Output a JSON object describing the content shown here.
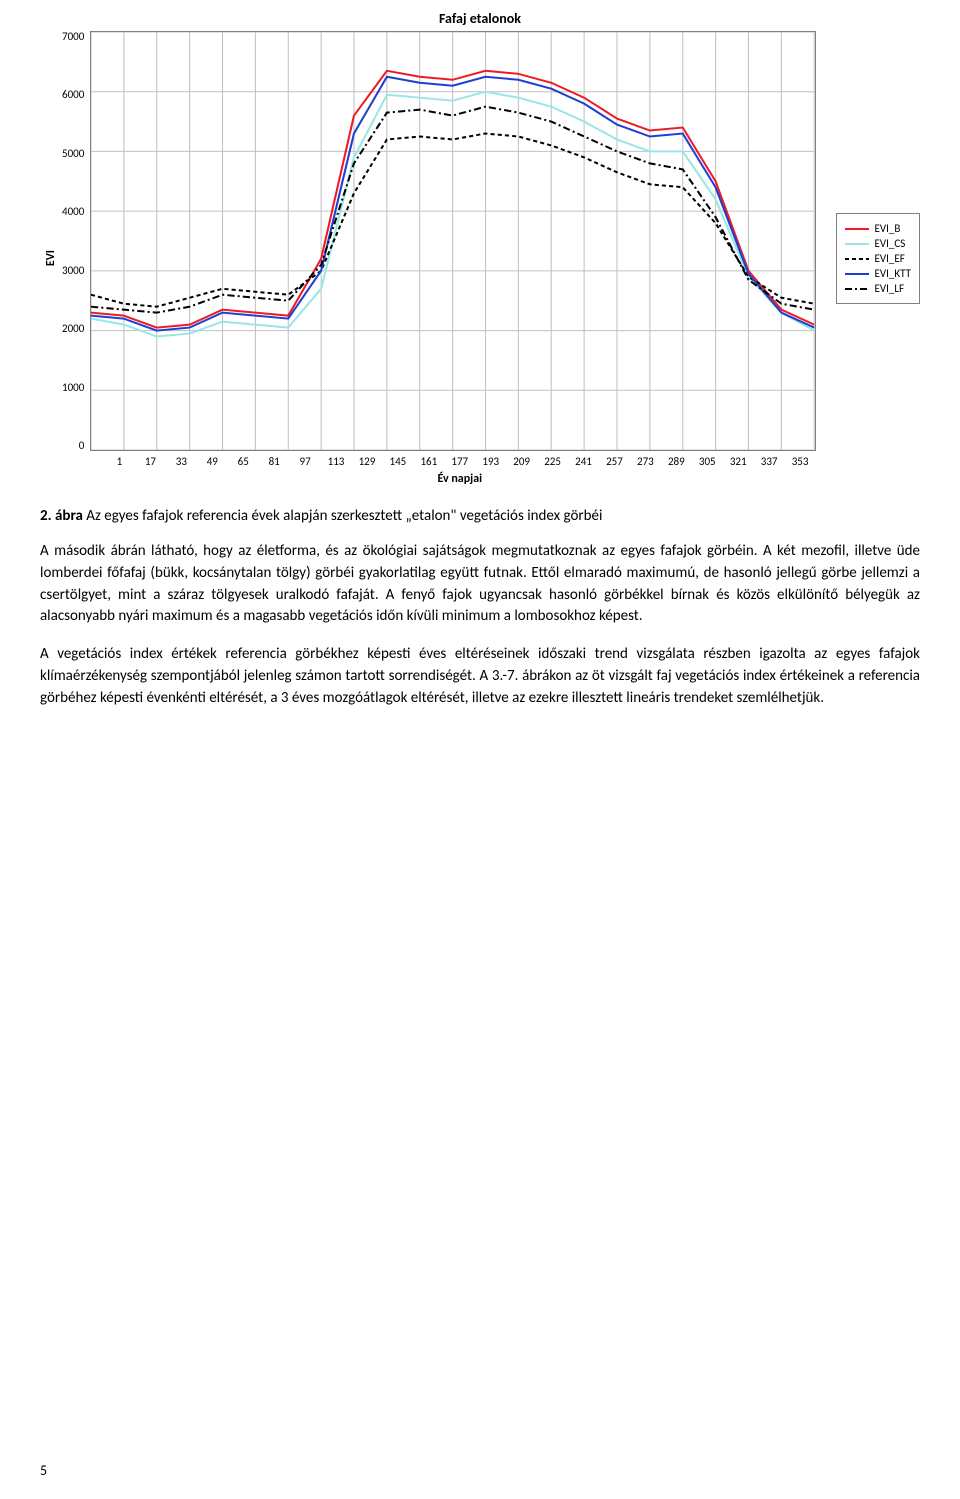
{
  "chart": {
    "type": "line",
    "title": "Fafaj etalonok",
    "y_axis_label": "EVI",
    "x_axis_label": "Év napjai",
    "background_color": "#ffffff",
    "plot_border_color": "#808080",
    "grid_color": "#c0c0c0",
    "ylim": [
      0,
      7000
    ],
    "ytick_step": 1000,
    "y_ticks": [
      "7000",
      "6000",
      "5000",
      "4000",
      "3000",
      "2000",
      "1000",
      "0"
    ],
    "xlim": [
      1,
      353
    ],
    "xtick_step": 16,
    "x_ticks": [
      "1",
      "17",
      "33",
      "49",
      "65",
      "81",
      "97",
      "113",
      "129",
      "145",
      "161",
      "177",
      "193",
      "209",
      "225",
      "241",
      "257",
      "273",
      "289",
      "305",
      "321",
      "337",
      "353"
    ],
    "title_fontsize": 14,
    "axis_label_fontsize": 12,
    "tick_fontsize": 11,
    "line_width": 2,
    "series": [
      {
        "name": "EVI_B",
        "color": "#ed1c24",
        "dash": "solid",
        "x": [
          1,
          17,
          33,
          49,
          65,
          81,
          97,
          113,
          129,
          145,
          161,
          177,
          193,
          209,
          225,
          241,
          257,
          273,
          289,
          305,
          321,
          337,
          353
        ],
        "y": [
          2300,
          2250,
          2050,
          2100,
          2350,
          2300,
          2250,
          3200,
          5600,
          6350,
          6250,
          6200,
          6350,
          6300,
          6150,
          5900,
          5550,
          5350,
          5400,
          4500,
          3000,
          2350,
          2100
        ]
      },
      {
        "name": "EVI_CS",
        "color": "#99e6e6",
        "dash": "solid",
        "x": [
          1,
          17,
          33,
          49,
          65,
          81,
          97,
          113,
          129,
          145,
          161,
          177,
          193,
          209,
          225,
          241,
          257,
          273,
          289,
          305,
          321,
          337,
          353
        ],
        "y": [
          2200,
          2100,
          1900,
          1950,
          2150,
          2100,
          2050,
          2700,
          4900,
          5950,
          5900,
          5850,
          6000,
          5900,
          5750,
          5500,
          5200,
          5000,
          5000,
          4200,
          2900,
          2300,
          2000
        ]
      },
      {
        "name": "EVI_EF",
        "color": "#000000",
        "dash": "4 3",
        "x": [
          1,
          17,
          33,
          49,
          65,
          81,
          97,
          113,
          129,
          145,
          161,
          177,
          193,
          209,
          225,
          241,
          257,
          273,
          289,
          305,
          321,
          337,
          353
        ],
        "y": [
          2600,
          2450,
          2400,
          2550,
          2700,
          2650,
          2600,
          3000,
          4300,
          5200,
          5250,
          5200,
          5300,
          5250,
          5100,
          4900,
          4650,
          4450,
          4400,
          3800,
          2900,
          2550,
          2450
        ]
      },
      {
        "name": "EVI_KTT",
        "color": "#1f3fd2",
        "dash": "solid",
        "x": [
          1,
          17,
          33,
          49,
          65,
          81,
          97,
          113,
          129,
          145,
          161,
          177,
          193,
          209,
          225,
          241,
          257,
          273,
          289,
          305,
          321,
          337,
          353
        ],
        "y": [
          2250,
          2200,
          2000,
          2050,
          2300,
          2250,
          2200,
          3000,
          5300,
          6250,
          6150,
          6100,
          6250,
          6200,
          6050,
          5800,
          5450,
          5250,
          5300,
          4400,
          2950,
          2300,
          2050
        ]
      },
      {
        "name": "EVI_LF",
        "color": "#000000",
        "dash": "7 3 2 3",
        "x": [
          1,
          17,
          33,
          49,
          65,
          81,
          97,
          113,
          129,
          145,
          161,
          177,
          193,
          209,
          225,
          241,
          257,
          273,
          289,
          305,
          321,
          337,
          353
        ],
        "y": [
          2400,
          2350,
          2300,
          2400,
          2600,
          2550,
          2500,
          3100,
          4800,
          5650,
          5700,
          5600,
          5750,
          5650,
          5500,
          5250,
          5000,
          4800,
          4700,
          3900,
          2850,
          2450,
          2350
        ]
      }
    ],
    "legend_labels": [
      "EVI_B",
      "EVI_CS",
      "EVI_EF",
      "EVI_KTT",
      "EVI_LF"
    ]
  },
  "caption": {
    "label": "2. ábra",
    "text": "Az egyes fafajok referencia évek alapján szerkesztett „etalon\" vegetációs index görbéi"
  },
  "paragraphs": {
    "p1": "A második ábrán látható, hogy az életforma, és az ökológiai sajátságok megmutatkoznak az egyes fafajok görbéin. A két mezofil, illetve üde lomberdei főfafaj (bükk, kocsánytalan tölgy) görbéi gyakorlatilag együtt futnak. Ettől elmaradó maximumú, de hasonló jellegű görbe jellemzi a csertölgyet, mint a száraz tölgyesek uralkodó fafaját. A fenyő fajok ugyancsak hasonló görbékkel bírnak és közös elkülönítő bélyegük az alacsonyabb nyári maximum és a magasabb vegetációs időn kívüli minimum a lombosokhoz képest.",
    "p2": "A vegetációs index értékek referencia görbékhez képesti éves eltéréseinek időszaki trend vizsgálata részben igazolta az egyes fafajok klímaérzékenység szempontjából jelenleg számon tartott sorrendiségét. A 3.-7. ábrákon az öt vizsgált faj vegetációs index értékeinek a referencia görbéhez képesti évenkénti eltérését, a 3 éves mozgóátlagok eltérését, illetve az ezekre illesztett lineáris trendeket szemlélhetjük."
  },
  "page_number": "5"
}
